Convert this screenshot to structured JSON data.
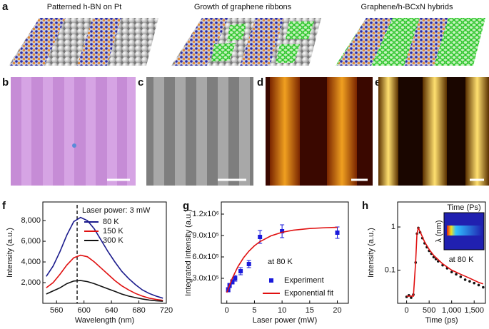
{
  "panels": {
    "a": {
      "label": "a",
      "titles": [
        "Patterned h-BN on Pt",
        "Growth of graphene ribbons",
        "Graphene/h-BCxN hybrids"
      ]
    },
    "b": {
      "label": "b"
    },
    "c": {
      "label": "c"
    },
    "d": {
      "label": "d"
    },
    "e": {
      "label": "e"
    }
  },
  "chart_data": [
    {
      "type": "line",
      "panel_label": "f",
      "xlabel": "Wavelength (nm)",
      "ylabel": "Intensity (a.u.)",
      "xlim": [
        540,
        720
      ],
      "ylim": [
        0,
        9800
      ],
      "xticks": [
        560,
        600,
        640,
        680,
        720
      ],
      "yticks": [
        {
          "value": 2000,
          "label": "2,000"
        },
        {
          "value": 4000,
          "label": "4,000"
        },
        {
          "value": 6000,
          "label": "6,000"
        },
        {
          "value": 8000,
          "label": "8,000"
        }
      ],
      "legend_title": "Laser power: 3 mW",
      "reference_line_x": 590,
      "x": [
        545,
        555,
        565,
        575,
        585,
        595,
        605,
        615,
        625,
        635,
        645,
        655,
        665,
        675,
        685,
        695,
        705,
        715
      ],
      "series": [
        {
          "name": "80 K",
          "color": "#1a1a8c",
          "style": "line",
          "values": [
            2600,
            3600,
            5000,
            6600,
            7900,
            8300,
            8000,
            7200,
            6100,
            5000,
            4000,
            3100,
            2400,
            1800,
            1300,
            950,
            700,
            500
          ]
        },
        {
          "name": "150 K",
          "color": "#e01010",
          "style": "line",
          "values": [
            1500,
            2000,
            2800,
            3700,
            4400,
            4650,
            4500,
            4000,
            3400,
            2800,
            2200,
            1700,
            1300,
            950,
            700,
            500,
            380,
            280
          ]
        },
        {
          "name": "300 K",
          "color": "#111111",
          "style": "line",
          "values": [
            900,
            1200,
            1500,
            1900,
            2150,
            2200,
            2100,
            1900,
            1650,
            1400,
            1150,
            900,
            700,
            550,
            420,
            320,
            250,
            200
          ]
        }
      ]
    },
    {
      "type": "scatter",
      "panel_label": "g",
      "xlabel": "Laser power (mW)",
      "ylabel": "Integrated intensity (a.u.)",
      "xlim": [
        -1,
        22
      ],
      "ylim": [
        -50000,
        1370000
      ],
      "xticks": [
        0,
        5,
        10,
        15,
        20
      ],
      "yticks": [
        {
          "value": 300000,
          "label": "3.0x10⁵"
        },
        {
          "value": 600000,
          "label": "6.0x10⁵"
        },
        {
          "value": 900000,
          "label": "9.0x10⁵"
        },
        {
          "value": 1200000,
          "label": "1.2x10⁶"
        }
      ],
      "annotation": "at 80 K",
      "series": [
        {
          "name": "Experiment",
          "color": "#1a1adb",
          "style": "markers",
          "x": [
            0.25,
            0.5,
            1,
            1.5,
            2.5,
            4,
            6,
            10,
            20
          ],
          "values": [
            140000,
            200000,
            250000,
            300000,
            400000,
            500000,
            880000,
            960000,
            940000
          ],
          "errors": [
            30000,
            30000,
            30000,
            40000,
            50000,
            50000,
            90000,
            90000,
            80000
          ]
        },
        {
          "name": "Exponential fit",
          "color": "#e01010",
          "style": "line",
          "x": [
            0,
            1,
            2,
            3,
            4,
            5,
            6,
            8,
            10,
            12,
            15,
            18,
            20
          ],
          "values": [
            100000,
            303000,
            462000,
            586000,
            681000,
            756000,
            815000,
            896000,
            945000,
            974000,
            998000,
            1010000,
            1014000
          ]
        }
      ]
    },
    {
      "type": "line",
      "panel_label": "h",
      "xlabel": "Time (ps)",
      "ylabel": "Intensity (a.u.)",
      "log_y": true,
      "xlim": [
        -200,
        1750
      ],
      "ylim": [
        0.017,
        3.8
      ],
      "xticks": [
        0,
        500,
        {
          "value": 1000,
          "label": "1,000"
        },
        {
          "value": 1500,
          "label": "1,500"
        }
      ],
      "yticks": [
        0.1,
        1
      ],
      "inset": {
        "x_label": "Time (Ps)",
        "y_label": "λ (nm)",
        "annotation": "at 80 K"
      },
      "series": [
        {
          "color": "#111111",
          "style": "dots",
          "x": [
            0,
            50,
            100,
            150,
            200,
            230,
            260,
            300,
            350,
            400,
            450,
            500,
            550,
            600,
            650,
            700,
            800,
            900,
            1000,
            1100,
            1200,
            1300,
            1400,
            1500,
            1600,
            1700
          ],
          "values": [
            0.024,
            0.026,
            0.023,
            0.027,
            0.15,
            0.7,
            0.95,
            0.75,
            0.55,
            0.42,
            0.34,
            0.28,
            0.24,
            0.2,
            0.18,
            0.16,
            0.13,
            0.11,
            0.09,
            0.08,
            0.07,
            0.06,
            0.055,
            0.05,
            0.045,
            0.04
          ]
        },
        {
          "color": "#e01010",
          "style": "line",
          "x": [
            0,
            150,
            200,
            230,
            260,
            300,
            400,
            500,
            600,
            800,
            1000,
            1200,
            1400,
            1600,
            1700
          ],
          "values": [
            0.025,
            0.025,
            0.15,
            0.7,
            0.95,
            0.78,
            0.45,
            0.3,
            0.22,
            0.14,
            0.1,
            0.08,
            0.065,
            0.052,
            0.048
          ]
        }
      ]
    }
  ]
}
